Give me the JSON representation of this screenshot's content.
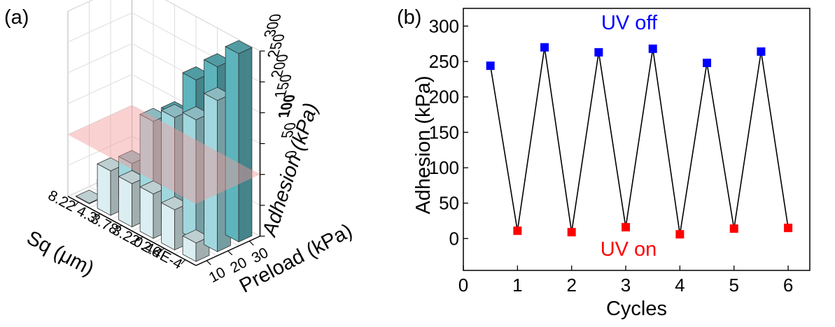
{
  "chart_data": [
    {
      "panel_label": "(a)",
      "type": "bar3d",
      "threshold_plane": 100,
      "axes": {
        "x": {
          "label": "Sq (μm)",
          "categories": [
            "2.4E-4",
            "0.46",
            "3.22",
            "3.78",
            "4.3",
            "8.22"
          ]
        },
        "y": {
          "label": "Preload (kPa)",
          "categories": [
            "10",
            "20",
            "30"
          ]
        },
        "z": {
          "label": "Adhesion (kPa)",
          "ticks": [
            "0",
            "50",
            "100",
            "150",
            "200",
            "250",
            "300"
          ],
          "highlight_tick": "100",
          "range": [
            0,
            300
          ]
        }
      },
      "grid": true,
      "bars": [
        {
          "sq": "2.4E-4",
          "preload": "30",
          "value": 305
        },
        {
          "sq": "0.46",
          "preload": "30",
          "value": 265
        },
        {
          "sq": "3.22",
          "preload": "30",
          "value": 225
        },
        {
          "sq": "3.78",
          "preload": "30",
          "value": 150
        },
        {
          "sq": "4.3",
          "preload": "30",
          "value": 32
        },
        {
          "sq": "8.22",
          "preload": "30",
          "value": 8
        },
        {
          "sq": "2.4E-4",
          "preload": "20",
          "value": 245
        },
        {
          "sq": "0.46",
          "preload": "20",
          "value": 195
        },
        {
          "sq": "3.22",
          "preload": "20",
          "value": 180
        },
        {
          "sq": "3.78",
          "preload": "20",
          "value": 155
        },
        {
          "sq": "4.3",
          "preload": "20",
          "value": 68
        },
        {
          "sq": "8.22",
          "preload": "20",
          "value": 12
        },
        {
          "sq": "2.4E-4",
          "preload": "10",
          "value": 30
        },
        {
          "sq": "0.46",
          "preload": "10",
          "value": 65
        },
        {
          "sq": "3.22",
          "preload": "10",
          "value": 72
        },
        {
          "sq": "3.78",
          "preload": "10",
          "value": 70
        },
        {
          "sq": "4.3",
          "preload": "10",
          "value": 72
        },
        {
          "sq": "8.22",
          "preload": "10",
          "value": 1
        }
      ],
      "colors": {
        "preload_30": "#5fb8c0",
        "preload_20": "#a3dbe3",
        "preload_10": "#dff3f6",
        "plane": "#f59a9a",
        "highlight": "#ff0000"
      }
    },
    {
      "panel_label": "(b)",
      "type": "line",
      "xlabel": "Cycles",
      "ylabel": "Adhesion (kPa)",
      "xlim": [
        0,
        6.4
      ],
      "ylim": [
        -45,
        325
      ],
      "xticks": [
        "0",
        "1",
        "2",
        "3",
        "4",
        "5",
        "6"
      ],
      "yticks": [
        "0",
        "50",
        "100",
        "150",
        "200",
        "250",
        "300"
      ],
      "annotations": {
        "off": "UV off",
        "on": "UV on"
      },
      "series": [
        {
          "name": "UV off",
          "color": "#0000ff",
          "x": [
            0.5,
            1.5,
            2.5,
            3.5,
            4.5,
            5.5
          ],
          "y": [
            244,
            270,
            263,
            268,
            248,
            264
          ]
        },
        {
          "name": "UV on",
          "color": "#ff0000",
          "x": [
            1,
            2,
            3,
            4,
            5,
            6
          ],
          "y": [
            11,
            9,
            16,
            6,
            14,
            15
          ]
        }
      ],
      "line_color": "#000000"
    }
  ]
}
